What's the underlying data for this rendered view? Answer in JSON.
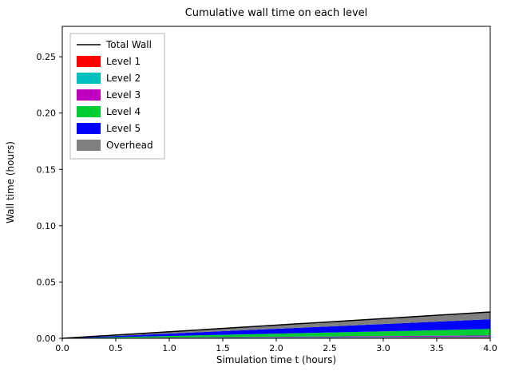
{
  "figure": {
    "background": "#ffffff"
  },
  "chart_data": {
    "type": "area",
    "title": "Cumulative wall time on each level",
    "xlabel": "Simulation time t (hours)",
    "ylabel": "Wall time (hours)",
    "xlim": [
      0.0,
      4.0
    ],
    "ylim": [
      0.0,
      0.277
    ],
    "xticks": [
      "0.0",
      "0.5",
      "1.0",
      "1.5",
      "2.0",
      "2.5",
      "3.0",
      "3.5",
      "4.0"
    ],
    "yticks": [
      "0.00",
      "0.05",
      "0.10",
      "0.15",
      "0.20",
      "0.25"
    ],
    "grid": false,
    "legend_position": "upper left",
    "x": [
      0.0,
      4.0
    ],
    "series": [
      {
        "name": "Level 1",
        "color": "#ff0000",
        "values": [
          0,
          0.0008
        ]
      },
      {
        "name": "Level 2",
        "color": "#00bfbf",
        "values": [
          0,
          0.0009
        ]
      },
      {
        "name": "Level 3",
        "color": "#bf00bf",
        "values": [
          0,
          0.0009
        ]
      },
      {
        "name": "Level 4",
        "color": "#00cc33",
        "values": [
          0,
          0.0057
        ]
      },
      {
        "name": "Level 5",
        "color": "#0000ff",
        "values": [
          0,
          0.0086
        ]
      },
      {
        "name": "Overhead",
        "color": "#808080",
        "values": [
          0,
          0.0065
        ]
      }
    ],
    "total_line": {
      "name": "Total Wall",
      "color": "#000000",
      "values": [
        0,
        0.0234
      ]
    },
    "legend_entries": [
      "Total Wall",
      "Level 1",
      "Level 2",
      "Level 3",
      "Level 4",
      "Level 5",
      "Overhead"
    ]
  }
}
